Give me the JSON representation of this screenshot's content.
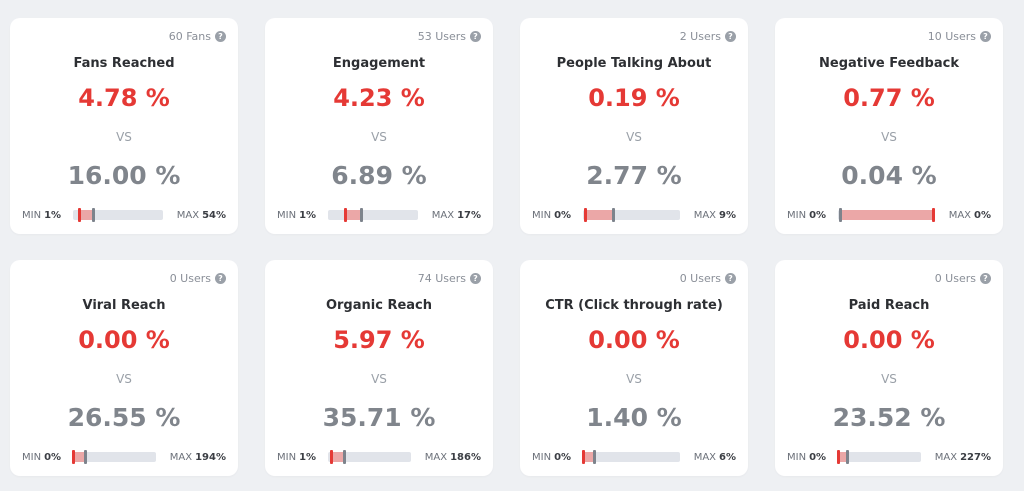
{
  "cards": [
    {
      "count": "60 Fans",
      "title": "Fans Reached",
      "value": "4.78 %",
      "vs": "VS",
      "benchmark": "16.00 %",
      "min_label": "MIN",
      "min": "1%",
      "max_label": "MAX",
      "max": "54%",
      "red_pos": 0.07,
      "gray_pos": 0.22
    },
    {
      "count": "53 Users",
      "title": "Engagement",
      "value": "4.23 %",
      "vs": "VS",
      "benchmark": "6.89 %",
      "min_label": "MIN",
      "min": "1%",
      "max_label": "MAX",
      "max": "17%",
      "red_pos": 0.19,
      "gray_pos": 0.37
    },
    {
      "count": "2 Users",
      "title": "People Talking About",
      "value": "0.19 %",
      "vs": "VS",
      "benchmark": "2.77 %",
      "min_label": "MIN",
      "min": "0%",
      "max_label": "MAX",
      "max": "9%",
      "red_pos": 0.02,
      "gray_pos": 0.31
    },
    {
      "count": "10 Users",
      "title": "Negative Feedback",
      "value": "0.77 %",
      "vs": "VS",
      "benchmark": "0.04 %",
      "min_label": "MIN",
      "min": "0%",
      "max_label": "MAX",
      "max": "0%",
      "red_pos": 0.98,
      "gray_pos": 0.02
    },
    {
      "count": "0 Users",
      "title": "Viral Reach",
      "value": "0.00 %",
      "vs": "VS",
      "benchmark": "26.55 %",
      "min_label": "MIN",
      "min": "0%",
      "max_label": "MAX",
      "max": "194%",
      "red_pos": 0.0,
      "gray_pos": 0.14
    },
    {
      "count": "74 Users",
      "title": "Organic Reach",
      "value": "5.97 %",
      "vs": "VS",
      "benchmark": "35.71 %",
      "min_label": "MIN",
      "min": "1%",
      "max_label": "MAX",
      "max": "186%",
      "red_pos": 0.03,
      "gray_pos": 0.19
    },
    {
      "count": "0 Users",
      "title": "CTR (Click through rate)",
      "value": "0.00 %",
      "vs": "VS",
      "benchmark": "1.40 %",
      "min_label": "MIN",
      "min": "0%",
      "max_label": "MAX",
      "max": "6%",
      "red_pos": 0.0,
      "gray_pos": 0.11
    },
    {
      "count": "0 Users",
      "title": "Paid Reach",
      "value": "0.00 %",
      "vs": "VS",
      "benchmark": "23.52 %",
      "min_label": "MIN",
      "min": "0%",
      "max_label": "MAX",
      "max": "227%",
      "red_pos": 0.0,
      "gray_pos": 0.11
    }
  ],
  "icons": {
    "help": "question-circle-icon"
  },
  "colors": {
    "value_red": "#e53935",
    "benchmark_gray": "#80858c",
    "fill_pink": "#eba7a7"
  }
}
